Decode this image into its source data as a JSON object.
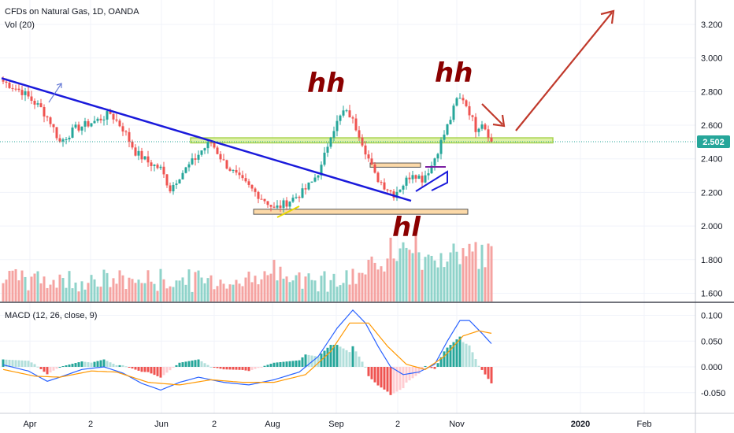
{
  "header": {
    "title": "CFDs on Natural Gas, 1D, OANDA",
    "volume_label": "Vol (20)",
    "macd_label": "MACD (12, 26, close, 9)"
  },
  "price_axis": {
    "ticks": [
      "3.200",
      "3.000",
      "2.800",
      "2.600",
      "2.400",
      "2.200",
      "2.000",
      "1.800",
      "1.600"
    ],
    "values": [
      3.2,
      3.0,
      2.8,
      2.6,
      2.4,
      2.2,
      2.0,
      1.8,
      1.6
    ],
    "last_price": "2.502",
    "last_value": 2.502
  },
  "macd_axis": {
    "ticks": [
      "0.100",
      "0.050",
      "0.000",
      "-0.050"
    ],
    "values": [
      0.1,
      0.05,
      0.0,
      -0.05
    ]
  },
  "time_axis": {
    "labels": [
      "Apr",
      "2",
      "Jun",
      "2",
      "Aug",
      "Sep",
      "2",
      "Nov",
      "2020",
      "Feb"
    ]
  },
  "annotations": {
    "hh_left": "hh",
    "hh_right": "hh",
    "hl": "hl"
  },
  "colors": {
    "up": "#26a69a",
    "down": "#ef5350",
    "vol_up": "#8fd3ca",
    "vol_down": "#f5a3a1",
    "trendline": "#1a1adb",
    "zone_green": "#9acd32",
    "zone_orange": "#e8a050",
    "arrow_red": "#c0392b",
    "macd_line": "#2962ff",
    "signal_line": "#ff9800",
    "price_badge": "#26a69a"
  },
  "chart_data": {
    "type": "candlestick",
    "symbol": "CFDs on Natural Gas, 1D, OANDA",
    "x_range": [
      "2019-03",
      "2020-02"
    ],
    "ylim": [
      1.55,
      3.3
    ],
    "macd_ylim": [
      -0.085,
      0.125
    ],
    "last_close": 2.502,
    "path_points": [
      [
        0,
        2.86
      ],
      [
        6,
        2.8
      ],
      [
        12,
        2.7
      ],
      [
        15,
        2.62
      ],
      [
        18,
        2.5
      ],
      [
        23,
        2.58
      ],
      [
        30,
        2.63
      ],
      [
        34,
        2.67
      ],
      [
        38,
        2.58
      ],
      [
        42,
        2.44
      ],
      [
        46,
        2.38
      ],
      [
        50,
        2.34
      ],
      [
        53,
        2.22
      ],
      [
        56,
        2.3
      ],
      [
        60,
        2.38
      ],
      [
        63,
        2.45
      ],
      [
        66,
        2.5
      ],
      [
        70,
        2.38
      ],
      [
        75,
        2.28
      ],
      [
        80,
        2.2
      ],
      [
        84,
        2.14
      ],
      [
        86,
        2.1
      ],
      [
        90,
        2.14
      ],
      [
        95,
        2.2
      ],
      [
        98,
        2.26
      ],
      [
        101,
        2.35
      ],
      [
        104,
        2.55
      ],
      [
        108,
        2.68
      ],
      [
        110,
        2.66
      ],
      [
        113,
        2.55
      ],
      [
        116,
        2.4
      ],
      [
        118,
        2.3
      ],
      [
        121,
        2.24
      ],
      [
        124,
        2.19
      ],
      [
        127,
        2.25
      ],
      [
        130,
        2.32
      ],
      [
        133,
        2.28
      ],
      [
        136,
        2.36
      ],
      [
        139,
        2.5
      ],
      [
        142,
        2.64
      ],
      [
        144,
        2.75
      ],
      [
        146,
        2.76
      ],
      [
        148,
        2.68
      ],
      [
        150,
        2.58
      ],
      [
        152,
        2.62
      ],
      [
        154,
        2.55
      ],
      [
        155,
        2.502
      ]
    ],
    "bars": 156,
    "macd_points": [
      [
        0,
        0.004
      ],
      [
        8,
        -0.008
      ],
      [
        14,
        -0.028
      ],
      [
        18,
        -0.02
      ],
      [
        25,
        -0.005
      ],
      [
        32,
        0.0
      ],
      [
        38,
        -0.012
      ],
      [
        44,
        -0.032
      ],
      [
        50,
        -0.045
      ],
      [
        56,
        -0.03
      ],
      [
        62,
        -0.02
      ],
      [
        70,
        -0.03
      ],
      [
        78,
        -0.035
      ],
      [
        86,
        -0.025
      ],
      [
        94,
        -0.01
      ],
      [
        100,
        0.02
      ],
      [
        106,
        0.075
      ],
      [
        111,
        0.11
      ],
      [
        115,
        0.085
      ],
      [
        119,
        0.04
      ],
      [
        123,
        0.0
      ],
      [
        127,
        -0.015
      ],
      [
        132,
        -0.01
      ],
      [
        137,
        0.005
      ],
      [
        141,
        0.05
      ],
      [
        145,
        0.09
      ],
      [
        148,
        0.09
      ],
      [
        152,
        0.065
      ],
      [
        155,
        0.045
      ]
    ],
    "signal_points": [
      [
        0,
        -0.005
      ],
      [
        10,
        -0.018
      ],
      [
        18,
        -0.02
      ],
      [
        28,
        -0.008
      ],
      [
        36,
        -0.01
      ],
      [
        46,
        -0.03
      ],
      [
        56,
        -0.035
      ],
      [
        66,
        -0.025
      ],
      [
        76,
        -0.03
      ],
      [
        86,
        -0.03
      ],
      [
        96,
        -0.015
      ],
      [
        104,
        0.03
      ],
      [
        110,
        0.085
      ],
      [
        116,
        0.085
      ],
      [
        122,
        0.04
      ],
      [
        128,
        0.005
      ],
      [
        134,
        -0.005
      ],
      [
        140,
        0.02
      ],
      [
        146,
        0.06
      ],
      [
        151,
        0.07
      ],
      [
        155,
        0.065
      ]
    ],
    "drawings": {
      "trendline": {
        "from": [
          0,
          2.88
        ],
        "to": [
          130,
          2.15
        ]
      },
      "green_zone": {
        "from": 60,
        "to": 175,
        "low": 2.495,
        "high": 2.525
      },
      "orange_zone_low": {
        "from": 80,
        "to": 148,
        "low": 2.07,
        "high": 2.1
      },
      "orange_zone_mid": {
        "from": 117,
        "to": 133,
        "low": 2.35,
        "high": 2.375
      }
    }
  }
}
